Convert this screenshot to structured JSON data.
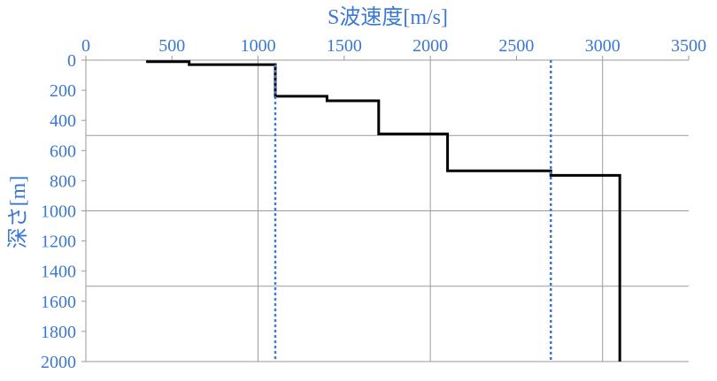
{
  "chart_data": {
    "type": "line",
    "title": "",
    "xlabel": "S波速度[m/s]",
    "ylabel": "深さ[m]",
    "xlim": [
      0,
      3500
    ],
    "ylim": [
      0,
      2000
    ],
    "y_inverted": true,
    "x_axis_position": "top",
    "x_ticks": [
      0,
      500,
      1000,
      1500,
      2000,
      2500,
      3000,
      3500
    ],
    "y_ticks": [
      0,
      200,
      400,
      600,
      800,
      1000,
      1200,
      1400,
      1600,
      1800,
      2000
    ],
    "grid": {
      "vertical_at": [
        0,
        1000,
        2000,
        3000
      ],
      "horizontal_at": [
        500,
        1000,
        1500
      ]
    },
    "legend": "none",
    "series": [
      {
        "style": "step",
        "color": "#000000",
        "x": [
          350,
          600,
          600,
          1100,
          1100,
          1400,
          1400,
          1700,
          1700,
          2100,
          2100,
          2700,
          2700,
          3100,
          3100
        ],
        "y": [
          10,
          10,
          30,
          30,
          240,
          240,
          270,
          270,
          490,
          490,
          735,
          735,
          765,
          765,
          2000
        ]
      },
      {
        "style": "dotted",
        "color": "#3a78d4",
        "x": [
          1100,
          1100
        ],
        "y": [
          30,
          2000
        ]
      },
      {
        "style": "dotted",
        "color": "#3a78d4",
        "x": [
          2700,
          2700
        ],
        "y": [
          0,
          2000
        ]
      }
    ],
    "colors": {
      "axis_text": "#3a78d4",
      "grid": "#9a9a9a"
    }
  }
}
